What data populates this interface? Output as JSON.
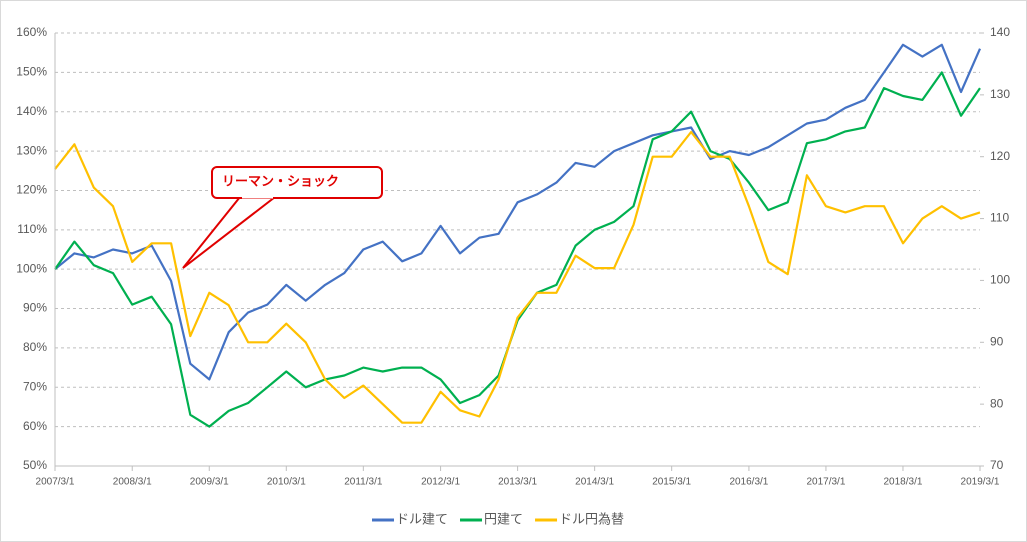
{
  "chart_data": {
    "type": "line",
    "annotation": "リーマン・ショック",
    "x": [
      "2007/3/1",
      "2007/6/1",
      "2007/9/1",
      "2007/12/1",
      "2008/3/1",
      "2008/6/1",
      "2008/9/1",
      "2008/12/1",
      "2009/3/1",
      "2009/6/1",
      "2009/9/1",
      "2009/12/1",
      "2010/3/1",
      "2010/6/1",
      "2010/9/1",
      "2010/12/1",
      "2011/3/1",
      "2011/6/1",
      "2011/9/1",
      "2011/12/1",
      "2012/3/1",
      "2012/6/1",
      "2012/9/1",
      "2012/12/1",
      "2013/3/1",
      "2013/6/1",
      "2013/9/1",
      "2013/12/1",
      "2014/3/1",
      "2014/6/1",
      "2014/9/1",
      "2014/12/1",
      "2015/3/1",
      "2015/6/1",
      "2015/9/1",
      "2015/12/1",
      "2016/3/1",
      "2016/6/1",
      "2016/9/1",
      "2016/12/1",
      "2017/3/1",
      "2017/6/1",
      "2017/9/1",
      "2017/12/1",
      "2018/3/1",
      "2018/6/1",
      "2018/9/1",
      "2018/12/1",
      "2019/3/1"
    ],
    "xlim": [
      "2007/3/1",
      "2019/3/1"
    ],
    "xticks": [
      "2007/3/1",
      "2008/3/1",
      "2009/3/1",
      "2010/3/1",
      "2011/3/1",
      "2012/3/1",
      "2013/3/1",
      "2014/3/1",
      "2015/3/1",
      "2016/3/1",
      "2017/3/1",
      "2018/3/1",
      "2019/3/1"
    ],
    "ylim": [
      50,
      160
    ],
    "yticks": [
      {
        "value": 50,
        "label": "50%"
      },
      {
        "value": 60,
        "label": "60%"
      },
      {
        "value": 70,
        "label": "70%"
      },
      {
        "value": 80,
        "label": "80%"
      },
      {
        "value": 90,
        "label": "90%"
      },
      {
        "value": 100,
        "label": "100%"
      },
      {
        "value": 110,
        "label": "110%"
      },
      {
        "value": 120,
        "label": "120%"
      },
      {
        "value": 130,
        "label": "130%"
      },
      {
        "value": 140,
        "label": "140%"
      },
      {
        "value": 150,
        "label": "150%"
      },
      {
        "value": 160,
        "label": "160%"
      }
    ],
    "y2lim": [
      70,
      140
    ],
    "y2ticks": [
      70,
      80,
      90,
      100,
      110,
      120,
      130,
      140
    ],
    "grid": true,
    "legend": "bottom",
    "series": [
      {
        "name": "ドル建て",
        "color": "#4472c4",
        "values": [
          100,
          104,
          103,
          105,
          104,
          106,
          97,
          76,
          72,
          84,
          89,
          91,
          96,
          92,
          96,
          99,
          105,
          107,
          102,
          104,
          111,
          104,
          108,
          109,
          117,
          119,
          122,
          127,
          126,
          130,
          132,
          134,
          135,
          136,
          128,
          130,
          129,
          131,
          134,
          137,
          138,
          141,
          143,
          150,
          157,
          154,
          157,
          145,
          156
        ]
      },
      {
        "name": "円建て",
        "color": "#00b050",
        "values": [
          100,
          107,
          101,
          99,
          91,
          93,
          86,
          63,
          60,
          64,
          66,
          70,
          74,
          70,
          72,
          73,
          75,
          74,
          75,
          75,
          72,
          66,
          68,
          73,
          87,
          94,
          96,
          106,
          110,
          112,
          116,
          133,
          135,
          140,
          130,
          128,
          122,
          115,
          117,
          132,
          133,
          135,
          136,
          146,
          144,
          143,
          150,
          139,
          146
        ]
      },
      {
        "name": "ドル円為替",
        "color": "#ffc000",
        "axis": "y2",
        "values": [
          118,
          122,
          115,
          112,
          103,
          106,
          106,
          91,
          98,
          96,
          90,
          90,
          93,
          90,
          84,
          81,
          83,
          80,
          77,
          77,
          82,
          79,
          78,
          84,
          94,
          98,
          98,
          104,
          102,
          102,
          109,
          120,
          120,
          124,
          120,
          120,
          112,
          103,
          101,
          117,
          112,
          111,
          112,
          112,
          106,
          110,
          112,
          110,
          111
        ]
      }
    ]
  }
}
